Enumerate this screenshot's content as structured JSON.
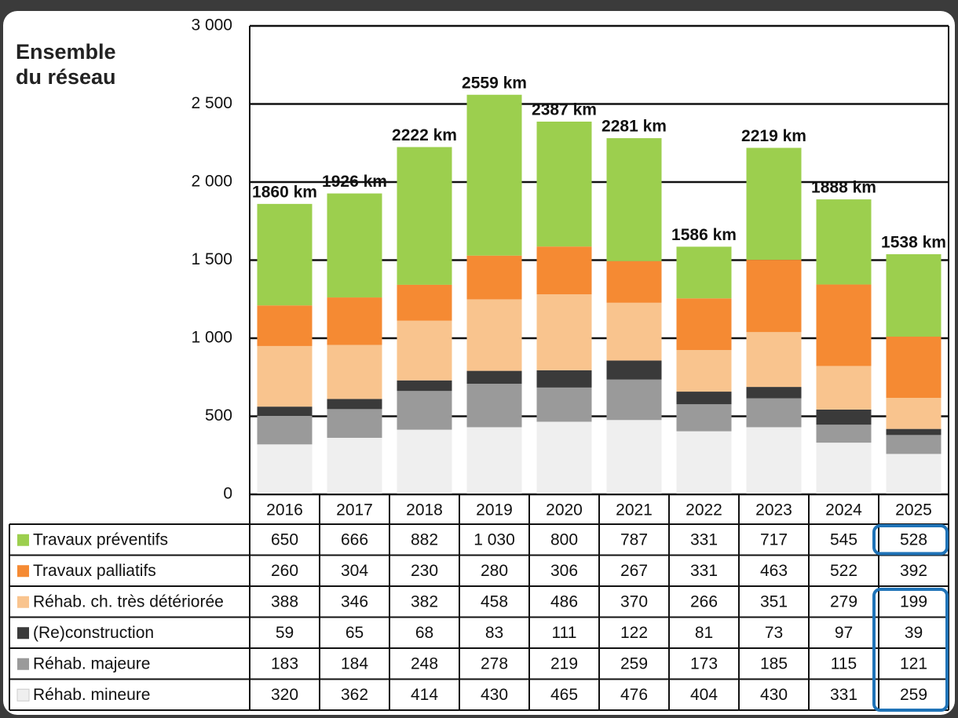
{
  "chart_data": {
    "type": "stacked_bar",
    "title": "Ensemble du réseau",
    "categories": [
      "2016",
      "2017",
      "2018",
      "2019",
      "2020",
      "2021",
      "2022",
      "2023",
      "2024",
      "2025"
    ],
    "series": [
      {
        "name": "Travaux préventifs",
        "color": "#9ccf4e",
        "values": [
          650,
          666,
          882,
          1030,
          800,
          787,
          331,
          717,
          545,
          528
        ],
        "value_labels": [
          "650",
          "666",
          "882",
          "1 030",
          "800",
          "787",
          "331",
          "717",
          "545",
          "528"
        ]
      },
      {
        "name": "Travaux palliatifs",
        "color": "#f58a33",
        "values": [
          260,
          304,
          230,
          280,
          306,
          267,
          331,
          463,
          522,
          392
        ]
      },
      {
        "name": "Réhab. ch. très détériorée",
        "color": "#f9c48e",
        "values": [
          388,
          346,
          382,
          458,
          486,
          370,
          266,
          351,
          279,
          199
        ]
      },
      {
        "name": "(Re)construction",
        "color": "#3a3a3a",
        "values": [
          59,
          65,
          68,
          83,
          111,
          122,
          81,
          73,
          97,
          39
        ]
      },
      {
        "name": "Réhab. majeure",
        "color": "#9a9a9a",
        "values": [
          183,
          184,
          248,
          278,
          219,
          259,
          173,
          185,
          115,
          121
        ]
      },
      {
        "name": "Réhab. mineure",
        "color": "#efefef",
        "values": [
          320,
          362,
          414,
          430,
          465,
          476,
          404,
          430,
          331,
          259
        ]
      }
    ],
    "total_labels": [
      "1860 km",
      "1926 km",
      "2222 km",
      "2559 km",
      "2387 km",
      "2281 km",
      "1586 km",
      "2219 km",
      "1888 km",
      "1538 km"
    ],
    "ylim": [
      0,
      3000
    ],
    "yticks": [
      0,
      500,
      {
        "value": 1000,
        "label": "1 000"
      },
      {
        "value": 1500,
        "label": "1 500"
      },
      {
        "value": 2000,
        "label": "2 000"
      },
      {
        "value": 2500,
        "label": "2 500"
      },
      {
        "value": 3000,
        "label": "3 000"
      }
    ],
    "grid": true
  }
}
